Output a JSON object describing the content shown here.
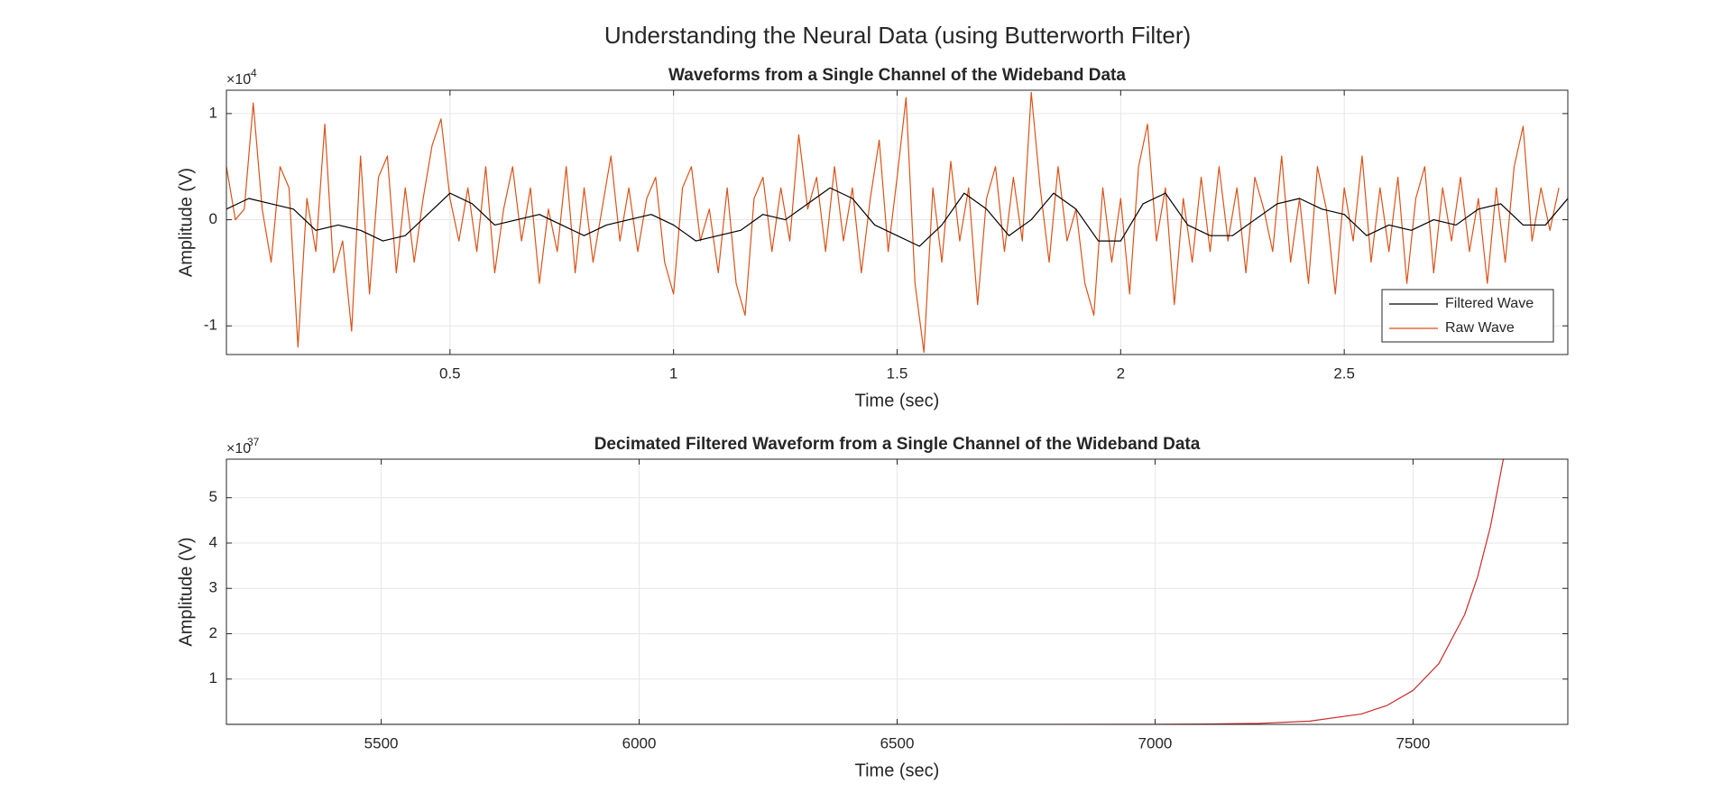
{
  "title": "Understanding the Neural Data (using Butterworth Filter)",
  "chart_data": [
    {
      "type": "line",
      "title": "Waveforms from a Single Channel of the Wideband Data",
      "xlabel": "Time (sec)",
      "ylabel": "Amplitude (V)",
      "y_multiplier": {
        "base": "×10",
        "exponent": "-4"
      },
      "xlim": [
        0,
        3
      ],
      "ylim": [
        -1.27,
        1.22
      ],
      "xticks": [
        0.5,
        1,
        1.5,
        2,
        2.5
      ],
      "yticks": [
        -1,
        0,
        1
      ],
      "grid": true,
      "legend": "southeast",
      "series": [
        {
          "name": "Filtered Wave",
          "color": "#000000",
          "x": [
            0,
            0.05,
            0.1,
            0.15,
            0.2,
            0.25,
            0.3,
            0.35,
            0.4,
            0.45,
            0.5,
            0.55,
            0.6,
            0.65,
            0.7,
            0.75,
            0.8,
            0.85,
            0.9,
            0.95,
            1.0,
            1.05,
            1.1,
            1.15,
            1.2,
            1.25,
            1.3,
            1.35,
            1.4,
            1.45,
            1.5,
            1.55,
            1.6,
            1.65,
            1.7,
            1.75,
            1.8,
            1.85,
            1.9,
            1.95,
            2.0,
            2.05,
            2.1,
            2.15,
            2.2,
            2.25,
            2.3,
            2.35,
            2.4,
            2.45,
            2.5,
            2.55,
            2.6,
            2.65,
            2.7,
            2.75,
            2.8,
            2.85,
            2.9,
            2.95,
            3.0
          ],
          "values": [
            0.1,
            0.2,
            0.15,
            0.1,
            -0.1,
            -0.05,
            -0.1,
            -0.2,
            -0.15,
            0.05,
            0.25,
            0.15,
            -0.05,
            0.0,
            0.05,
            -0.05,
            -0.15,
            -0.05,
            0.0,
            0.05,
            -0.05,
            -0.2,
            -0.15,
            -0.1,
            0.05,
            0.0,
            0.15,
            0.3,
            0.2,
            -0.05,
            -0.15,
            -0.25,
            -0.05,
            0.25,
            0.1,
            -0.15,
            0.0,
            0.25,
            0.1,
            -0.2,
            -0.2,
            0.15,
            0.25,
            -0.05,
            -0.15,
            -0.15,
            0.0,
            0.15,
            0.2,
            0.1,
            0.05,
            -0.15,
            -0.05,
            -0.1,
            0.0,
            -0.05,
            0.1,
            0.15,
            -0.05,
            -0.05,
            0.2
          ]
        },
        {
          "name": "Raw Wave",
          "color": "#d95319",
          "x": [
            0,
            0.02,
            0.04,
            0.06,
            0.08,
            0.1,
            0.12,
            0.14,
            0.16,
            0.18,
            0.2,
            0.22,
            0.24,
            0.26,
            0.28,
            0.3,
            0.32,
            0.34,
            0.36,
            0.38,
            0.4,
            0.42,
            0.44,
            0.46,
            0.48,
            0.5,
            0.52,
            0.54,
            0.56,
            0.58,
            0.6,
            0.62,
            0.64,
            0.66,
            0.68,
            0.7,
            0.72,
            0.74,
            0.76,
            0.78,
            0.8,
            0.82,
            0.84,
            0.86,
            0.88,
            0.9,
            0.92,
            0.94,
            0.96,
            0.98,
            1.0,
            1.02,
            1.04,
            1.06,
            1.08,
            1.1,
            1.12,
            1.14,
            1.16,
            1.18,
            1.2,
            1.22,
            1.24,
            1.26,
            1.28,
            1.3,
            1.32,
            1.34,
            1.36,
            1.38,
            1.4,
            1.42,
            1.44,
            1.46,
            1.48,
            1.5,
            1.52,
            1.54,
            1.56,
            1.58,
            1.6,
            1.62,
            1.64,
            1.66,
            1.68,
            1.7,
            1.72,
            1.74,
            1.76,
            1.78,
            1.8,
            1.82,
            1.84,
            1.86,
            1.88,
            1.9,
            1.92,
            1.94,
            1.96,
            1.98,
            2.0,
            2.02,
            2.04,
            2.06,
            2.08,
            2.1,
            2.12,
            2.14,
            2.16,
            2.18,
            2.2,
            2.22,
            2.24,
            2.26,
            2.28,
            2.3,
            2.32,
            2.34,
            2.36,
            2.38,
            2.4,
            2.42,
            2.44,
            2.46,
            2.48,
            2.5,
            2.52,
            2.54,
            2.56,
            2.58,
            2.6,
            2.62,
            2.64,
            2.66,
            2.68,
            2.7,
            2.72,
            2.74,
            2.76,
            2.78,
            2.8,
            2.82,
            2.84,
            2.86,
            2.88,
            2.9,
            2.92,
            2.94,
            2.96,
            2.98
          ],
          "values": [
            0.5,
            0.0,
            0.1,
            1.1,
            0.1,
            -0.4,
            0.5,
            0.3,
            -1.2,
            0.2,
            -0.3,
            0.9,
            -0.5,
            -0.2,
            -1.05,
            0.6,
            -0.7,
            0.4,
            0.6,
            -0.5,
            0.3,
            -0.4,
            0.2,
            0.7,
            0.95,
            0.2,
            -0.2,
            0.3,
            -0.3,
            0.5,
            -0.5,
            0.1,
            0.5,
            -0.2,
            0.3,
            -0.6,
            0.1,
            -0.3,
            0.5,
            -0.5,
            0.3,
            -0.4,
            0.1,
            0.6,
            -0.2,
            0.3,
            -0.3,
            0.2,
            0.4,
            -0.4,
            -0.7,
            0.3,
            0.5,
            -0.2,
            0.1,
            -0.5,
            0.3,
            -0.6,
            -0.9,
            0.2,
            0.4,
            -0.3,
            0.3,
            -0.2,
            0.8,
            0.1,
            0.4,
            -0.3,
            0.5,
            -0.2,
            0.3,
            -0.5,
            0.2,
            0.75,
            -0.3,
            0.4,
            1.15,
            -0.6,
            -1.25,
            0.3,
            -0.4,
            0.55,
            -0.2,
            0.3,
            -0.8,
            0.2,
            0.5,
            -0.3,
            0.4,
            -0.2,
            1.2,
            0.3,
            -0.4,
            0.5,
            -0.2,
            0.1,
            -0.6,
            -0.9,
            0.3,
            -0.4,
            0.2,
            -0.7,
            0.5,
            0.9,
            -0.2,
            0.3,
            -0.8,
            0.2,
            -0.4,
            0.4,
            -0.3,
            0.5,
            -0.2,
            0.3,
            -0.5,
            0.4,
            0.1,
            -0.3,
            0.6,
            -0.4,
            0.2,
            -0.6,
            0.5,
            0.1,
            -0.7,
            0.3,
            -0.2,
            0.6,
            -0.4,
            0.3,
            -0.3,
            0.4,
            -0.6,
            0.2,
            0.5,
            -0.5,
            0.3,
            -0.2,
            0.4,
            -0.3,
            0.2,
            -0.6,
            0.3,
            -0.4,
            0.5,
            0.88,
            -0.2,
            0.3,
            -0.1,
            0.3
          ]
        }
      ]
    },
    {
      "type": "line",
      "title": "Decimated Filtered Waveform from a Single Channel of the Wideband Data",
      "xlabel": "Time (sec)",
      "ylabel": "Amplitude (V)",
      "y_multiplier": {
        "base": "×10",
        "exponent": "37"
      },
      "xlim": [
        5200,
        7800
      ],
      "ylim": [
        0,
        5.85
      ],
      "xticks": [
        5500,
        6000,
        6500,
        7000,
        7500
      ],
      "yticks": [
        1,
        2,
        3,
        4,
        5
      ],
      "grid": true,
      "series": [
        {
          "color": "#cc2b2b",
          "x": [
            5200,
            5400,
            5600,
            5800,
            6000,
            6200,
            6400,
            6600,
            6800,
            7000,
            7100,
            7200,
            7300,
            7400,
            7450,
            7500,
            7550,
            7600,
            7625,
            7650,
            7675
          ],
          "values": [
            0,
            0,
            0,
            0,
            0,
            0,
            0,
            0,
            0,
            0.0021,
            0.0068,
            0.022,
            0.072,
            0.23,
            0.42,
            0.75,
            1.34,
            2.42,
            3.25,
            4.36,
            5.85
          ]
        }
      ]
    }
  ]
}
